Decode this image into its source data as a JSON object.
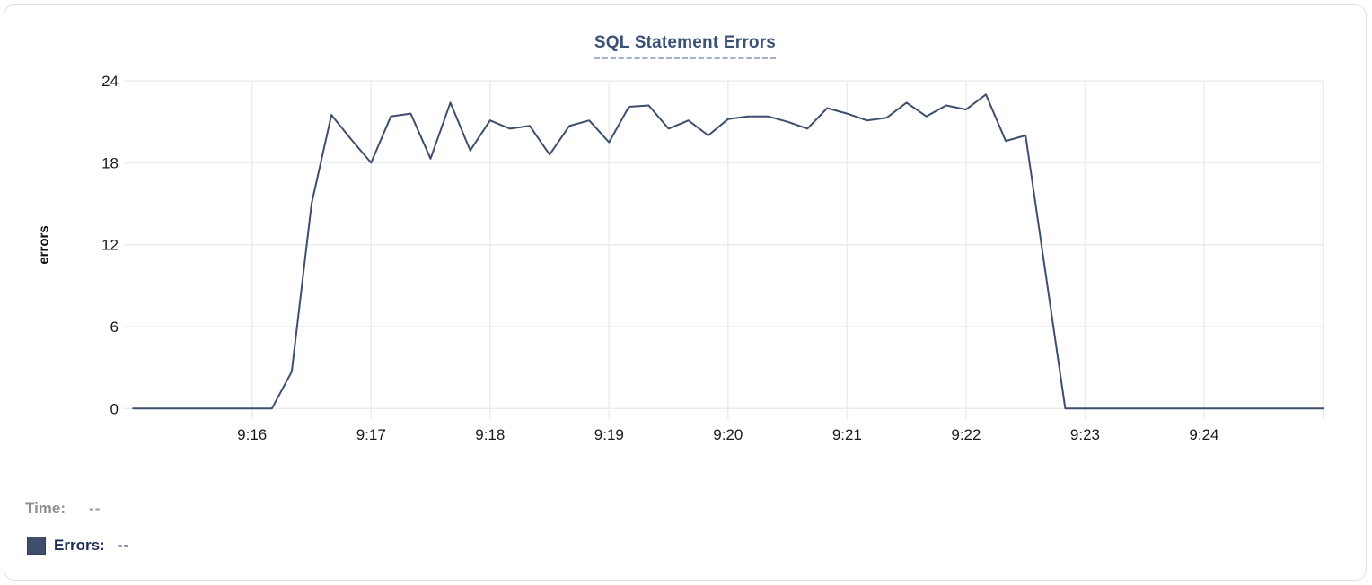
{
  "chart": {
    "title": "SQL Statement Errors",
    "y_axis_title": "errors"
  },
  "legend": {
    "time_label": "Time:",
    "time_value": "--",
    "errors_label": "Errors:",
    "errors_value": "--",
    "swatch_color": "#3e4e6c"
  },
  "colors": {
    "line": "#3e4e6c",
    "grid": "#ececec",
    "tick_label": "#1a1a1a",
    "title": "#3d5176",
    "title_underline": "#a3aec7",
    "card_border": "#e1e1e4",
    "time_label": "#8e8e93",
    "errors_label": "#1d2b55"
  },
  "chart_data": {
    "type": "line",
    "title": "SQL Statement Errors",
    "xlabel": "",
    "ylabel": "errors",
    "series_name": "Errors",
    "line_color": "#3e4e6c",
    "grid": true,
    "legend_position": "bottom-left",
    "ylim": [
      0,
      24
    ],
    "y_ticks": [
      0,
      6,
      12,
      18,
      24
    ],
    "x_range": [
      "9:15:00",
      "9:25:00"
    ],
    "x_tick_labels": [
      "9:16",
      "9:17",
      "9:18",
      "9:19",
      "9:20",
      "9:21",
      "9:22",
      "9:23",
      "9:24"
    ],
    "interval_seconds": 10,
    "x": [
      "9:15:00",
      "9:15:10",
      "9:15:20",
      "9:15:30",
      "9:15:40",
      "9:15:50",
      "9:16:00",
      "9:16:10",
      "9:16:20",
      "9:16:30",
      "9:16:40",
      "9:16:50",
      "9:17:00",
      "9:17:10",
      "9:17:20",
      "9:17:30",
      "9:17:40",
      "9:17:50",
      "9:18:00",
      "9:18:10",
      "9:18:20",
      "9:18:30",
      "9:18:40",
      "9:18:50",
      "9:19:00",
      "9:19:10",
      "9:19:20",
      "9:19:30",
      "9:19:40",
      "9:19:50",
      "9:20:00",
      "9:20:10",
      "9:20:20",
      "9:20:30",
      "9:20:40",
      "9:20:50",
      "9:21:00",
      "9:21:10",
      "9:21:20",
      "9:21:30",
      "9:21:40",
      "9:21:50",
      "9:22:00",
      "9:22:10",
      "9:22:20",
      "9:22:30",
      "9:22:40",
      "9:22:50",
      "9:23:00",
      "9:23:10",
      "9:23:20",
      "9:23:30",
      "9:23:40",
      "9:23:50",
      "9:24:00",
      "9:24:10",
      "9:24:20",
      "9:24:30",
      "9:24:40",
      "9:24:50",
      "9:25:00"
    ],
    "values": [
      0,
      0,
      0,
      0,
      0,
      0,
      0,
      0,
      2.7,
      15,
      21.5,
      19.7,
      18,
      21.4,
      21.6,
      18.3,
      22.4,
      18.9,
      21.1,
      20.5,
      20.7,
      18.6,
      20.7,
      21.1,
      19.5,
      22.1,
      22.2,
      20.5,
      21.1,
      20,
      21.2,
      21.4,
      21.4,
      21,
      20.5,
      22,
      21.6,
      21.1,
      21.3,
      22.4,
      21.4,
      22.2,
      21.9,
      23,
      19.6,
      20,
      10,
      0,
      0,
      0,
      0,
      0,
      0,
      0,
      0,
      0,
      0,
      0,
      0,
      0,
      0
    ]
  }
}
